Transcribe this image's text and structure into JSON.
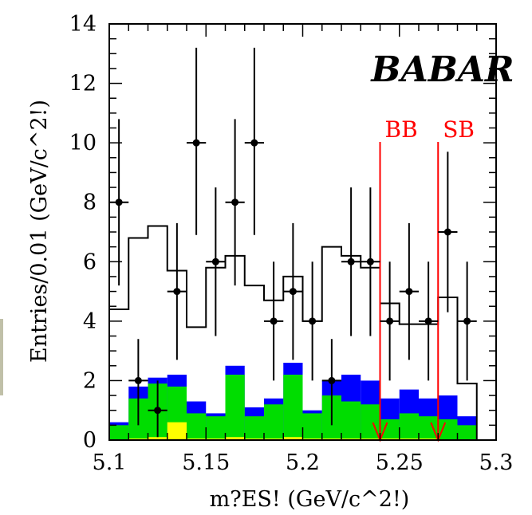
{
  "chart_data": {
    "type": "histogram",
    "xlabel": "m?ES! (GeV/c^2!)",
    "ylabel": "Entries/0.01 (GeV/c^2!)",
    "xlim": [
      5.1,
      5.3
    ],
    "ylim": [
      0,
      14
    ],
    "x_ticks": [
      "5.1",
      "5.15",
      "5.2",
      "5.25",
      "5.3"
    ],
    "y_ticks": [
      "0",
      "2",
      "4",
      "6",
      "8",
      "10",
      "12",
      "14"
    ],
    "x_tick_values": [
      5.1,
      5.15,
      5.2,
      5.25,
      5.3
    ],
    "y_tick_values": [
      0,
      2,
      4,
      6,
      8,
      10,
      12,
      14
    ],
    "bin_edges": [
      5.1,
      5.11,
      5.12,
      5.13,
      5.14,
      5.15,
      5.16,
      5.17,
      5.18,
      5.19,
      5.2,
      5.21,
      5.22,
      5.23,
      5.24,
      5.25,
      5.26,
      5.27,
      5.28,
      5.29
    ],
    "series": [
      {
        "kind": "stack",
        "color": "#0000ff",
        "values": [
          0.6,
          1.8,
          2.1,
          2.2,
          1.3,
          0.9,
          2.5,
          1.1,
          1.4,
          2.6,
          1.0,
          2.0,
          2.2,
          2.0,
          1.4,
          1.7,
          1.4,
          1.5,
          0.8
        ]
      },
      {
        "kind": "stack",
        "color": "#00dd00",
        "values": [
          0.5,
          1.4,
          1.9,
          1.8,
          0.9,
          0.8,
          2.2,
          0.8,
          1.2,
          2.2,
          0.9,
          1.5,
          1.3,
          1.2,
          0.7,
          0.9,
          0.8,
          0.7,
          0.5
        ]
      },
      {
        "kind": "stack",
        "color": "#ffff00",
        "values": [
          0.0,
          0.05,
          0.1,
          0.6,
          0.05,
          0.05,
          0.1,
          0.05,
          0.05,
          0.1,
          0.05,
          0.05,
          0.05,
          0.05,
          0.05,
          0.05,
          0.05,
          0.0,
          0.0
        ]
      },
      {
        "kind": "outline",
        "color": "#000000",
        "values": [
          4.4,
          6.8,
          7.2,
          5.7,
          3.8,
          5.8,
          6.2,
          5.2,
          4.7,
          5.5,
          4.0,
          6.5,
          6.2,
          5.8,
          4.6,
          3.9,
          3.9,
          4.8,
          1.9
        ]
      },
      {
        "kind": "points",
        "color": "#000000",
        "points": [
          {
            "x": 5.105,
            "y": 8,
            "lo": 5.2,
            "hi": 10.8
          },
          {
            "x": 5.115,
            "y": 2,
            "lo": 0.5,
            "hi": 3.4
          },
          {
            "x": 5.125,
            "y": 1,
            "lo": 0.1,
            "hi": 2.0
          },
          {
            "x": 5.135,
            "y": 5,
            "lo": 2.7,
            "hi": 7.3
          },
          {
            "x": 5.145,
            "y": 10,
            "lo": 6.9,
            "hi": 13.2
          },
          {
            "x": 5.155,
            "y": 6,
            "lo": 3.5,
            "hi": 8.5
          },
          {
            "x": 5.165,
            "y": 8,
            "lo": 5.2,
            "hi": 10.8
          },
          {
            "x": 5.175,
            "y": 10,
            "lo": 6.9,
            "hi": 13.2
          },
          {
            "x": 5.185,
            "y": 4,
            "lo": 2.0,
            "hi": 6.0
          },
          {
            "x": 5.195,
            "y": 5,
            "lo": 2.7,
            "hi": 7.3
          },
          {
            "x": 5.205,
            "y": 4,
            "lo": 2.0,
            "hi": 6.0
          },
          {
            "x": 5.215,
            "y": 2,
            "lo": 0.5,
            "hi": 3.4
          },
          {
            "x": 5.225,
            "y": 6,
            "lo": 3.5,
            "hi": 8.5
          },
          {
            "x": 5.235,
            "y": 6,
            "lo": 3.5,
            "hi": 8.5
          },
          {
            "x": 5.245,
            "y": 4,
            "lo": 2.0,
            "hi": 6.0
          },
          {
            "x": 5.255,
            "y": 5,
            "lo": 2.7,
            "hi": 7.3
          },
          {
            "x": 5.265,
            "y": 4,
            "lo": 2.0,
            "hi": 6.0
          },
          {
            "x": 5.275,
            "y": 7,
            "lo": 4.3,
            "hi": 9.7
          },
          {
            "x": 5.285,
            "y": 4,
            "lo": 2.0,
            "hi": 6.0
          }
        ]
      }
    ],
    "markers": [
      {
        "x": 5.24,
        "label": "BB",
        "color": "#ff0000"
      },
      {
        "x": 5.27,
        "label": "SB",
        "color": "#ff0000"
      }
    ],
    "logo_text": "BABAR"
  }
}
